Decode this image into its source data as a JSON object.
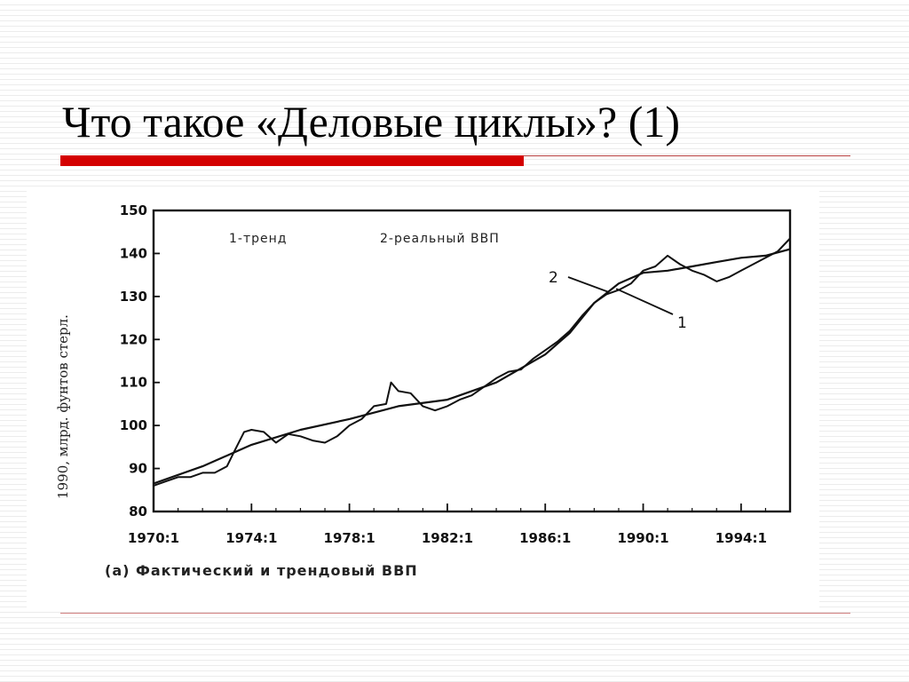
{
  "slide": {
    "title": "Что такое «Деловые циклы»? (1)"
  },
  "chart_data": {
    "type": "line",
    "ylabel": "1990, млрд. фунтов стерл.",
    "caption": "(а) Фактический и трендовый ВВП",
    "legend": {
      "trend": "1-тренд",
      "real": "2-реальный ВВП",
      "placement": "top-left"
    },
    "callouts": {
      "trend": "1",
      "real": "2"
    },
    "ylim": [
      80,
      150
    ],
    "yticks": [
      "80",
      "90",
      "100",
      "110",
      "120",
      "130",
      "140",
      "150"
    ],
    "xlim": [
      1970.0,
      1996.0
    ],
    "xticks": [
      "1970:1",
      "1974:1",
      "1978:1",
      "1982:1",
      "1986:1",
      "1990:1",
      "1994:1"
    ],
    "grid": false,
    "series": [
      {
        "name": "1-тренд",
        "x": [
          1970.0,
          1972.0,
          1974.0,
          1976.0,
          1978.0,
          1980.0,
          1982.0,
          1984.0,
          1986.0,
          1987.0,
          1988.0,
          1989.0,
          1990.0,
          1991.0,
          1992.0,
          1993.0,
          1994.0,
          1995.0,
          1996.0
        ],
        "values": [
          86.5,
          90.5,
          95.5,
          99.0,
          101.5,
          104.5,
          106.0,
          110.0,
          116.5,
          121.5,
          128.5,
          133.0,
          135.5,
          136.0,
          137.0,
          138.0,
          139.0,
          139.5,
          141.0
        ]
      },
      {
        "name": "2-реальный ВВП",
        "x": [
          1970.0,
          1970.5,
          1971.0,
          1971.5,
          1972.0,
          1972.5,
          1973.0,
          1973.3,
          1973.7,
          1974.0,
          1974.5,
          1975.0,
          1975.5,
          1976.0,
          1976.5,
          1977.0,
          1977.5,
          1978.0,
          1978.5,
          1979.0,
          1979.5,
          1979.7,
          1980.0,
          1980.5,
          1981.0,
          1981.5,
          1982.0,
          1982.5,
          1983.0,
          1983.5,
          1984.0,
          1984.5,
          1985.0,
          1985.5,
          1986.0,
          1986.5,
          1987.0,
          1987.5,
          1988.0,
          1988.5,
          1989.0,
          1989.5,
          1990.0,
          1990.5,
          1991.0,
          1991.5,
          1992.0,
          1992.5,
          1993.0,
          1993.5,
          1994.0,
          1994.5,
          1995.0,
          1995.5,
          1996.0
        ],
        "values": [
          86.0,
          87.0,
          88.0,
          88.0,
          89.0,
          89.0,
          90.5,
          94.0,
          98.5,
          99.0,
          98.5,
          96.0,
          98.0,
          97.5,
          96.5,
          96.0,
          97.5,
          100.0,
          101.5,
          104.5,
          105.0,
          110.0,
          108.0,
          107.5,
          104.5,
          103.5,
          104.5,
          106.0,
          107.0,
          109.0,
          111.0,
          112.5,
          113.0,
          115.5,
          117.5,
          119.5,
          122.0,
          125.5,
          128.5,
          130.5,
          131.5,
          133.0,
          136.0,
          137.0,
          139.5,
          137.5,
          136.0,
          135.0,
          133.5,
          134.5,
          136.0,
          137.5,
          139.0,
          140.5,
          143.5
        ]
      }
    ]
  }
}
